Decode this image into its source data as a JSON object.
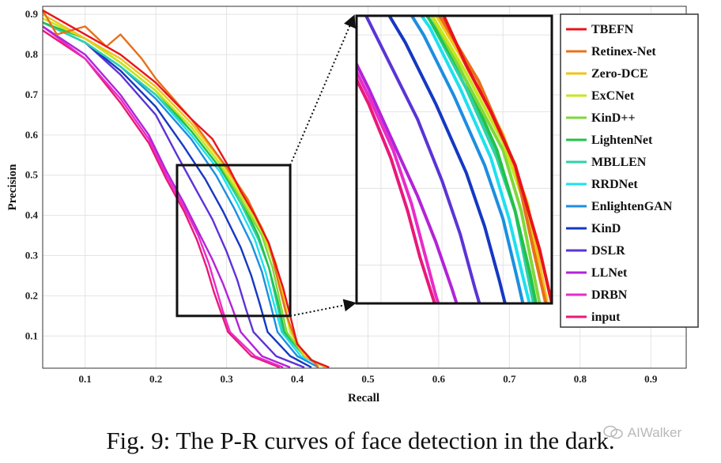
{
  "caption": "Fig. 9: The P-R curves of face detection in the dark.",
  "watermark": "AIWalker",
  "chart_data": {
    "type": "line",
    "xlabel": "Recall",
    "ylabel": "Precision",
    "xlim": [
      0.04,
      0.95
    ],
    "ylim": [
      0.02,
      0.92
    ],
    "xticks": [
      0.1,
      0.2,
      0.3,
      0.4,
      0.5,
      0.6,
      0.7,
      0.8,
      0.9
    ],
    "yticks": [
      0.1,
      0.2,
      0.3,
      0.4,
      0.5,
      0.6,
      0.7,
      0.8,
      0.9
    ],
    "grid": true,
    "legend_position": "right",
    "zoom_region": {
      "xlim": [
        0.23,
        0.39
      ],
      "ylim": [
        0.15,
        0.525
      ]
    },
    "series": [
      {
        "name": "TBEFN",
        "color": "#e8141c",
        "x": [
          0.04,
          0.1,
          0.15,
          0.2,
          0.25,
          0.28,
          0.3,
          0.32,
          0.34,
          0.36,
          0.38,
          0.39,
          0.4,
          0.42,
          0.445
        ],
        "y": [
          0.91,
          0.85,
          0.8,
          0.73,
          0.64,
          0.59,
          0.53,
          0.46,
          0.4,
          0.33,
          0.22,
          0.15,
          0.08,
          0.04,
          0.022
        ]
      },
      {
        "name": "Retinex-Net",
        "color": "#e8701a",
        "x": [
          0.04,
          0.06,
          0.1,
          0.13,
          0.15,
          0.18,
          0.2,
          0.25,
          0.3,
          0.33,
          0.36,
          0.375,
          0.385,
          0.4,
          0.43
        ],
        "y": [
          0.91,
          0.85,
          0.87,
          0.82,
          0.85,
          0.79,
          0.74,
          0.64,
          0.52,
          0.44,
          0.33,
          0.22,
          0.15,
          0.08,
          0.022
        ]
      },
      {
        "name": "Zero-DCE",
        "color": "#f2c31a",
        "x": [
          0.04,
          0.1,
          0.15,
          0.2,
          0.25,
          0.29,
          0.32,
          0.35,
          0.37,
          0.38,
          0.39,
          0.41,
          0.44
        ],
        "y": [
          0.9,
          0.84,
          0.79,
          0.72,
          0.63,
          0.54,
          0.46,
          0.37,
          0.28,
          0.2,
          0.12,
          0.05,
          0.022
        ]
      },
      {
        "name": "ExCNet",
        "color": "#c8e61e",
        "x": [
          0.04,
          0.1,
          0.15,
          0.2,
          0.25,
          0.29,
          0.32,
          0.35,
          0.37,
          0.38,
          0.39,
          0.41,
          0.44
        ],
        "y": [
          0.89,
          0.84,
          0.78,
          0.71,
          0.62,
          0.53,
          0.45,
          0.36,
          0.27,
          0.19,
          0.11,
          0.05,
          0.022
        ]
      },
      {
        "name": "KinD++",
        "color": "#7fd83a",
        "x": [
          0.04,
          0.1,
          0.15,
          0.2,
          0.25,
          0.29,
          0.32,
          0.35,
          0.365,
          0.375,
          0.385,
          0.41,
          0.44
        ],
        "y": [
          0.89,
          0.84,
          0.78,
          0.71,
          0.62,
          0.53,
          0.44,
          0.35,
          0.27,
          0.19,
          0.11,
          0.05,
          0.022
        ]
      },
      {
        "name": "LightenNet",
        "color": "#24c14a",
        "x": [
          0.04,
          0.1,
          0.15,
          0.2,
          0.25,
          0.29,
          0.32,
          0.345,
          0.36,
          0.372,
          0.382,
          0.41,
          0.44
        ],
        "y": [
          0.88,
          0.84,
          0.78,
          0.71,
          0.61,
          0.52,
          0.44,
          0.35,
          0.27,
          0.19,
          0.11,
          0.05,
          0.022
        ]
      },
      {
        "name": "MBLLEN",
        "color": "#2ed1a8",
        "x": [
          0.04,
          0.1,
          0.15,
          0.2,
          0.25,
          0.29,
          0.32,
          0.345,
          0.36,
          0.37,
          0.38,
          0.41,
          0.44
        ],
        "y": [
          0.88,
          0.83,
          0.77,
          0.7,
          0.61,
          0.52,
          0.43,
          0.34,
          0.27,
          0.19,
          0.11,
          0.05,
          0.022
        ]
      },
      {
        "name": "RRDNet",
        "color": "#1ee0ee",
        "x": [
          0.04,
          0.1,
          0.15,
          0.2,
          0.25,
          0.29,
          0.315,
          0.34,
          0.355,
          0.367,
          0.378,
          0.405,
          0.44
        ],
        "y": [
          0.88,
          0.83,
          0.77,
          0.7,
          0.6,
          0.51,
          0.43,
          0.34,
          0.26,
          0.18,
          0.11,
          0.05,
          0.022
        ]
      },
      {
        "name": "EnlightenGAN",
        "color": "#1c8ee0",
        "x": [
          0.04,
          0.1,
          0.15,
          0.2,
          0.25,
          0.285,
          0.31,
          0.335,
          0.35,
          0.362,
          0.372,
          0.4,
          0.43
        ],
        "y": [
          0.88,
          0.83,
          0.77,
          0.69,
          0.59,
          0.5,
          0.42,
          0.33,
          0.26,
          0.18,
          0.11,
          0.05,
          0.022
        ]
      },
      {
        "name": "KinD",
        "color": "#1538c2",
        "x": [
          0.04,
          0.1,
          0.15,
          0.2,
          0.24,
          0.27,
          0.295,
          0.32,
          0.335,
          0.347,
          0.358,
          0.39,
          0.42
        ],
        "y": [
          0.88,
          0.83,
          0.76,
          0.67,
          0.57,
          0.49,
          0.41,
          0.32,
          0.25,
          0.18,
          0.11,
          0.05,
          0.022
        ]
      },
      {
        "name": "DSLR",
        "color": "#5b34d6",
        "x": [
          0.04,
          0.1,
          0.15,
          0.2,
          0.23,
          0.255,
          0.28,
          0.3,
          0.315,
          0.327,
          0.338,
          0.37,
          0.41
        ],
        "y": [
          0.88,
          0.83,
          0.75,
          0.65,
          0.55,
          0.47,
          0.39,
          0.31,
          0.24,
          0.17,
          0.11,
          0.05,
          0.022
        ]
      },
      {
        "name": "LLNet",
        "color": "#b224d8",
        "x": [
          0.04,
          0.1,
          0.15,
          0.19,
          0.215,
          0.24,
          0.26,
          0.28,
          0.295,
          0.308,
          0.32,
          0.35,
          0.39
        ],
        "y": [
          0.87,
          0.8,
          0.7,
          0.6,
          0.51,
          0.43,
          0.36,
          0.29,
          0.23,
          0.17,
          0.11,
          0.05,
          0.022
        ]
      },
      {
        "name": "DRBN",
        "color": "#e82cc8",
        "x": [
          0.04,
          0.1,
          0.15,
          0.19,
          0.215,
          0.24,
          0.26,
          0.275,
          0.285,
          0.295,
          0.305,
          0.34,
          0.38
        ],
        "y": [
          0.87,
          0.79,
          0.69,
          0.59,
          0.5,
          0.42,
          0.35,
          0.28,
          0.22,
          0.16,
          0.11,
          0.05,
          0.022
        ]
      },
      {
        "name": "input",
        "color": "#e8197a",
        "x": [
          0.04,
          0.1,
          0.15,
          0.19,
          0.215,
          0.24,
          0.258,
          0.272,
          0.282,
          0.292,
          0.302,
          0.335,
          0.375
        ],
        "y": [
          0.86,
          0.79,
          0.68,
          0.58,
          0.49,
          0.41,
          0.34,
          0.27,
          0.21,
          0.16,
          0.11,
          0.05,
          0.022
        ]
      }
    ]
  }
}
